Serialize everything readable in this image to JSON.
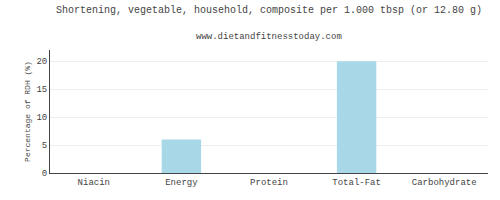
{
  "chart_data": {
    "type": "bar",
    "title": "Shortening, vegetable, household, composite per 1.000 tbsp (or 12.80 g)",
    "subtitle": "www.dietandfitnesstoday.com",
    "ylabel": "Percentage of RDH (%)",
    "categories": [
      "Niacin",
      "Energy",
      "Protein",
      "Total-Fat",
      "Carbohydrate"
    ],
    "values": [
      0,
      6,
      0,
      20,
      0
    ],
    "color": "#a8d8e8",
    "ylim": [
      0,
      22
    ],
    "yticks": [
      0,
      5,
      10,
      15,
      20
    ],
    "grid": true
  }
}
